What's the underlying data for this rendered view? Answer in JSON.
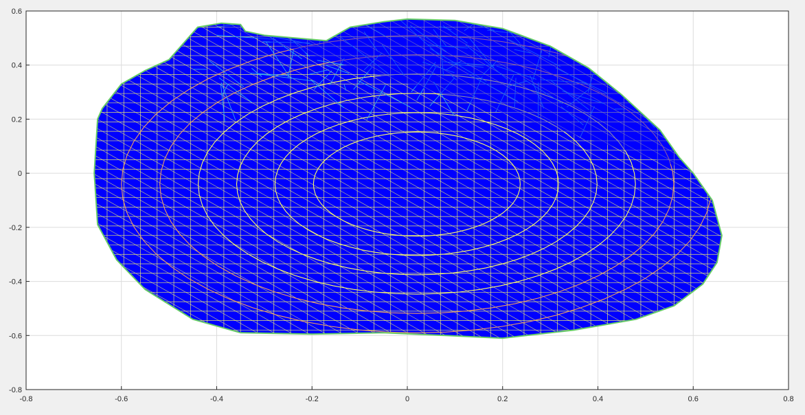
{
  "chart_data": {
    "type": "area",
    "title": "",
    "xlabel": "",
    "ylabel": "",
    "xlim": [
      -0.8,
      0.8
    ],
    "ylim": [
      -0.8,
      0.6
    ],
    "grid": true,
    "x_ticks": [
      -0.8,
      -0.6,
      -0.4,
      -0.2,
      0,
      0.2,
      0.4,
      0.6,
      0.8
    ],
    "y_ticks": [
      0.6,
      0.4,
      0.2,
      0,
      -0.2,
      -0.4,
      -0.6,
      -0.8
    ],
    "x_tick_labels": [
      "-0.8",
      "-0.6",
      "-0.4",
      "-0.2",
      "0",
      "0.2",
      "0.4",
      "0.6",
      "0.8"
    ],
    "y_tick_labels": [
      "0.6",
      "0.4",
      "0.2",
      "0",
      "-0.2",
      "-0.4",
      "-0.6",
      "-0.8"
    ],
    "series": [
      {
        "x": [
          -0.64,
          -0.6,
          -0.55,
          -0.5,
          -0.44,
          -0.39,
          -0.35,
          -0.34,
          -0.3,
          -0.17,
          -0.12,
          -0.05,
          0.0,
          0.1,
          0.2,
          0.3,
          0.38,
          0.45,
          0.53,
          0.57,
          0.6,
          0.64,
          0.66,
          0.65,
          0.62,
          0.56,
          0.48,
          0.35,
          0.2,
          0.08,
          -0.05,
          -0.2,
          -0.35,
          -0.45,
          -0.55,
          -0.61,
          -0.65,
          -0.657,
          -0.65
        ],
        "y": [
          0.24,
          0.33,
          0.38,
          0.42,
          0.54,
          0.555,
          0.55,
          0.525,
          0.51,
          0.49,
          0.54,
          0.56,
          0.57,
          0.565,
          0.535,
          0.47,
          0.39,
          0.29,
          0.16,
          0.06,
          0.0,
          -0.1,
          -0.23,
          -0.33,
          -0.41,
          -0.49,
          -0.54,
          -0.58,
          -0.61,
          -0.6,
          -0.59,
          -0.595,
          -0.59,
          -0.54,
          -0.43,
          -0.32,
          -0.19,
          0.0,
          0.2
        ]
      }
    ],
    "colors": {
      "fill": "#0000ff",
      "mesh_light": "#ffff66",
      "mesh_warm": "#f0a060",
      "mesh_cool": "#33aaee",
      "outline": "#66cc66",
      "axes_bg": "#ffffff",
      "grid": "#dcdcdc",
      "axis": "#262626"
    }
  }
}
